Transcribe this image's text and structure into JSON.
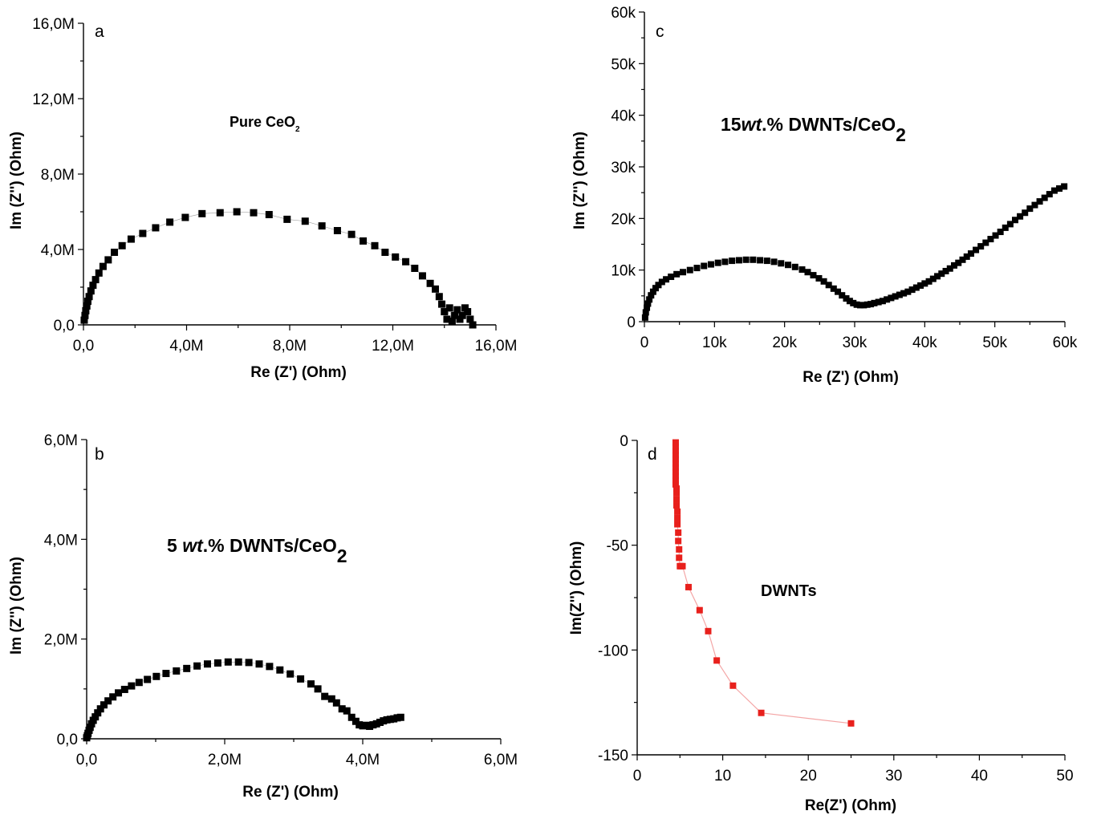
{
  "chart_data": [
    {
      "panel": "a",
      "type": "scatter",
      "annotation": {
        "main": "Pure CeO",
        "sub": "2",
        "italic": "",
        "rest": ""
      },
      "xlabel": "Re (Z') (Ohm)",
      "ylabel": "Im (Z'') (Ohm)",
      "xlim": [
        0,
        16000000
      ],
      "ylim": [
        0,
        16000000
      ],
      "xticks": [
        {
          "v": 0,
          "label": "0,0"
        },
        {
          "v": 4000000,
          "label": "4,0M"
        },
        {
          "v": 8000000,
          "label": "8,0M"
        },
        {
          "v": 12000000,
          "label": "12,0M"
        },
        {
          "v": 16000000,
          "label": "16,0M"
        }
      ],
      "yticks": [
        {
          "v": 0,
          "label": "0,0"
        },
        {
          "v": 4000000,
          "label": "4,0M"
        },
        {
          "v": 8000000,
          "label": "8,0M"
        },
        {
          "v": 12000000,
          "label": "12,0M"
        },
        {
          "v": 16000000,
          "label": "16,0M"
        }
      ],
      "color": "#000000",
      "series": [
        {
          "x": [
            30000,
            60000,
            90000,
            130000,
            170000,
            220000,
            290000,
            370000,
            470000,
            600000,
            760000,
            960000,
            1200000,
            1500000,
            1850000,
            2300000,
            2800000,
            3350000,
            3950000,
            4600000,
            5300000,
            5950000,
            6600000,
            7200000,
            7900000,
            8600000,
            9250000,
            9850000,
            10400000,
            10850000,
            11300000,
            11700000,
            12100000,
            12500000,
            12850000,
            13150000,
            13450000,
            13650000,
            13800000,
            13900000,
            14000000,
            14100000,
            14200000,
            14300000,
            14400000,
            14500000,
            14600000,
            14700000,
            14800000,
            14900000,
            15000000,
            15100000
          ],
          "y": [
            250000,
            500000,
            750000,
            1000000,
            1250000,
            1500000,
            1800000,
            2100000,
            2400000,
            2750000,
            3100000,
            3450000,
            3850000,
            4200000,
            4550000,
            4850000,
            5150000,
            5450000,
            5700000,
            5900000,
            5950000,
            6000000,
            5950000,
            5850000,
            5600000,
            5500000,
            5250000,
            5000000,
            4800000,
            4450000,
            4200000,
            3850000,
            3600000,
            3350000,
            3000000,
            2600000,
            2200000,
            1900000,
            1500000,
            1100000,
            700000,
            300000,
            900000,
            200000,
            500000,
            800000,
            300000,
            500000,
            900000,
            700000,
            300000,
            0
          ]
        }
      ]
    },
    {
      "panel": "c",
      "type": "scatter",
      "annotation": {
        "main": "15",
        "italic": "wt",
        "rest": ".%  DWNTs/CeO",
        "sub": "2"
      },
      "xlabel": "Re (Z') (Ohm)",
      "ylabel": "Im (Z'') (Ohm)",
      "xlim": [
        0,
        60000
      ],
      "ylim": [
        0,
        60000
      ],
      "xticks": [
        {
          "v": 0,
          "label": "0"
        },
        {
          "v": 10000,
          "label": "10k"
        },
        {
          "v": 20000,
          "label": "20k"
        },
        {
          "v": 30000,
          "label": "30k"
        },
        {
          "v": 40000,
          "label": "40k"
        },
        {
          "v": 50000,
          "label": "50k"
        },
        {
          "v": 60000,
          "label": "60k"
        }
      ],
      "yticks": [
        {
          "v": 0,
          "label": "0"
        },
        {
          "v": 10000,
          "label": "10k"
        },
        {
          "v": 20000,
          "label": "20k"
        },
        {
          "v": 30000,
          "label": "30k"
        },
        {
          "v": 40000,
          "label": "40k"
        },
        {
          "v": 50000,
          "label": "50k"
        },
        {
          "v": 60000,
          "label": "60k"
        }
      ],
      "color": "#000000",
      "series": [
        {
          "x": [
            100,
            200,
            350,
            500,
            700,
            950,
            1250,
            1600,
            2000,
            2500,
            3100,
            3800,
            4600,
            5500,
            6500,
            7500,
            8500,
            9500,
            10500,
            11500,
            12500,
            13500,
            14500,
            15500,
            16500,
            17500,
            18500,
            19500,
            20500,
            21500,
            22500,
            23300,
            24100,
            24900,
            25600,
            26300,
            27000,
            27600,
            28200,
            28800,
            29300,
            29800,
            30300,
            30800,
            31300,
            31800,
            32300,
            32800,
            33400,
            34000,
            34600,
            35200,
            35800,
            36400,
            37000,
            37600,
            38200,
            38800,
            39400,
            40000,
            40600,
            41200,
            41800,
            42400,
            43000,
            43600,
            44200,
            44800,
            45400,
            46000,
            46600,
            47300,
            48000,
            48700,
            49400,
            50100,
            50800,
            51500,
            52200,
            52900,
            53600,
            54300,
            55000,
            55700,
            56400,
            57100,
            57800,
            58500,
            59200,
            59900
          ],
          "y": [
            800,
            1800,
            2700,
            3500,
            4300,
            5100,
            5800,
            6500,
            7100,
            7700,
            8200,
            8700,
            9200,
            9600,
            10000,
            10400,
            10800,
            11100,
            11400,
            11600,
            11800,
            11900,
            12000,
            12000,
            11900,
            11800,
            11600,
            11300,
            11000,
            10600,
            10100,
            9600,
            9000,
            8400,
            7800,
            7100,
            6400,
            5800,
            5100,
            4500,
            4000,
            3600,
            3300,
            3200,
            3200,
            3300,
            3400,
            3600,
            3800,
            4000,
            4300,
            4600,
            4900,
            5200,
            5500,
            5800,
            6200,
            6600,
            7000,
            7400,
            7800,
            8300,
            8800,
            9300,
            9800,
            10300,
            10900,
            11400,
            12000,
            12600,
            13200,
            13900,
            14600,
            15300,
            16000,
            16700,
            17400,
            18200,
            18900,
            19700,
            20400,
            21100,
            21900,
            22600,
            23300,
            24000,
            24700,
            25400,
            25800,
            26200
          ]
        }
      ]
    },
    {
      "panel": "b",
      "type": "scatter",
      "annotation": {
        "main": "5 ",
        "italic": "wt",
        "rest": ".%  DWNTs/CeO",
        "sub": "2"
      },
      "xlabel": "Re (Z') (Ohm)",
      "ylabel": "Im (Z'') (Ohm)",
      "xlim": [
        0,
        6000000
      ],
      "ylim": [
        0,
        6000000
      ],
      "xticks": [
        {
          "v": 0,
          "label": "0,0"
        },
        {
          "v": 2000000,
          "label": "2,0M"
        },
        {
          "v": 4000000,
          "label": "4,0M"
        },
        {
          "v": 6000000,
          "label": "6,0M"
        }
      ],
      "yticks": [
        {
          "v": 0,
          "label": "0,0"
        },
        {
          "v": 2000000,
          "label": "2,0M"
        },
        {
          "v": 4000000,
          "label": "4,0M"
        },
        {
          "v": 6000000,
          "label": "6,0M"
        }
      ],
      "color": "#000000",
      "series": [
        {
          "x": [
            0,
            10000,
            20000,
            35000,
            50000,
            70000,
            95000,
            125000,
            160000,
            200000,
            250000,
            310000,
            380000,
            460000,
            550000,
            650000,
            760000,
            880000,
            1010000,
            1150000,
            1300000,
            1450000,
            1600000,
            1750000,
            1900000,
            2050000,
            2200000,
            2350000,
            2500000,
            2650000,
            2800000,
            2950000,
            3100000,
            3250000,
            3350000,
            3450000,
            3550000,
            3620000,
            3700000,
            3770000,
            3840000,
            3900000,
            3950000,
            4000000,
            4050000,
            4100000,
            4150000,
            4200000,
            4250000,
            4300000,
            4350000,
            4400000,
            4450000,
            4500000,
            4550000
          ],
          "y": [
            20000,
            60000,
            110000,
            170000,
            230000,
            300000,
            370000,
            440000,
            520000,
            600000,
            680000,
            760000,
            840000,
            920000,
            990000,
            1060000,
            1130000,
            1190000,
            1250000,
            1310000,
            1360000,
            1410000,
            1460000,
            1500000,
            1520000,
            1540000,
            1540000,
            1530000,
            1500000,
            1450000,
            1380000,
            1300000,
            1200000,
            1100000,
            1000000,
            850000,
            800000,
            720000,
            600000,
            560000,
            430000,
            350000,
            280000,
            260000,
            270000,
            250000,
            280000,
            300000,
            330000,
            360000,
            380000,
            390000,
            400000,
            420000,
            430000
          ]
        }
      ]
    },
    {
      "panel": "d",
      "type": "line",
      "annotation": {
        "main": "DWNTs",
        "italic": "",
        "rest": "",
        "sub": ""
      },
      "xlabel": "Re(Z') (Ohm)",
      "ylabel": "Im(Z'') (Ohm)",
      "xlim": [
        0,
        50
      ],
      "ylim": [
        -150,
        0
      ],
      "xticks": [
        {
          "v": 0,
          "label": "0"
        },
        {
          "v": 10,
          "label": "10"
        },
        {
          "v": 20,
          "label": "20"
        },
        {
          "v": 30,
          "label": "30"
        },
        {
          "v": 40,
          "label": "40"
        },
        {
          "v": 50,
          "label": "50"
        }
      ],
      "yticks": [
        {
          "v": 0,
          "label": "0"
        },
        {
          "v": -50,
          "label": "-50"
        },
        {
          "v": -100,
          "label": "-100"
        },
        {
          "v": -150,
          "label": "-150"
        }
      ],
      "color": "#e8201c",
      "line_color": "#f4a6a6",
      "series": [
        {
          "x": [
            4.5,
            4.5,
            4.5,
            4.5,
            4.5,
            4.5,
            4.5,
            4.5,
            4.5,
            4.5,
            4.5,
            4.6,
            4.6,
            4.6,
            4.6,
            4.7,
            4.7,
            4.7,
            4.8,
            4.8,
            4.9,
            4.9,
            5.0,
            5.1,
            5.3,
            6.0,
            7.3,
            8.3,
            9.3,
            11.2,
            14.5,
            25.0
          ],
          "y": [
            -1,
            -3,
            -5,
            -7,
            -9,
            -11,
            -13,
            -15,
            -17,
            -19,
            -21,
            -23,
            -25,
            -28,
            -31,
            -34,
            -37,
            -40,
            -44,
            -48,
            -52,
            -56,
            -60,
            -60,
            -60,
            -70,
            -81,
            -91,
            -105,
            -117,
            -130,
            -135
          ]
        }
      ]
    }
  ]
}
